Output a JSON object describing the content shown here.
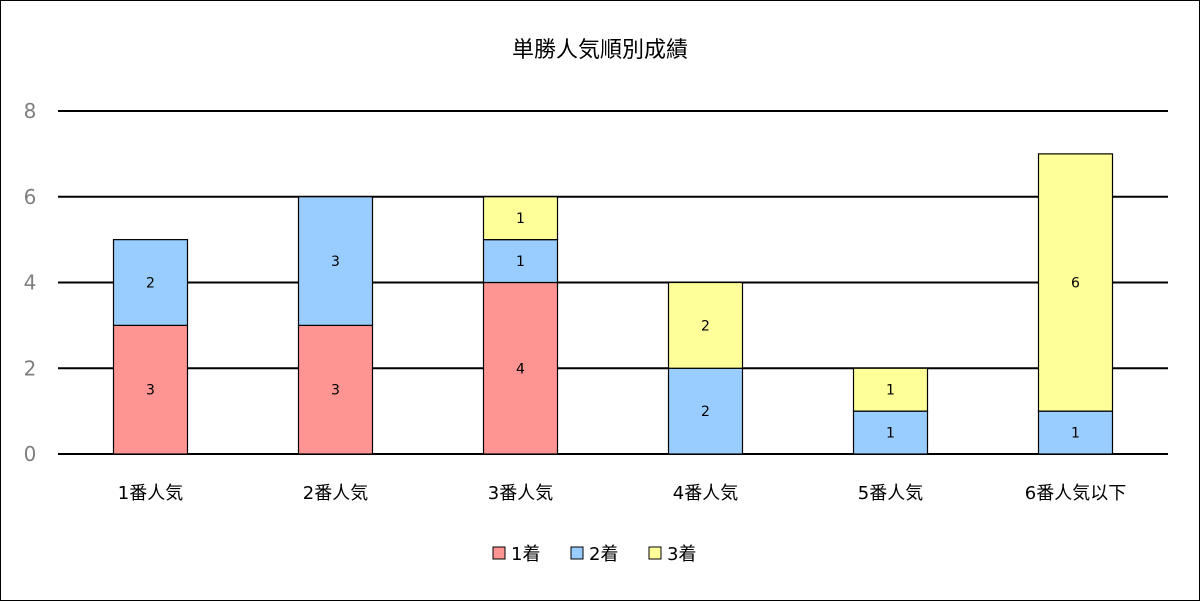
{
  "chart_data": {
    "type": "bar",
    "stacked": true,
    "title": "単勝人気順別成績",
    "categories": [
      "1番人気",
      "2番人気",
      "3番人気",
      "4番人気",
      "5番人気",
      "6番人気以下"
    ],
    "series": [
      {
        "name": "1着",
        "color": "#ff9592",
        "values": [
          3,
          3,
          4,
          0,
          0,
          0
        ]
      },
      {
        "name": "2着",
        "color": "#99ccff",
        "values": [
          2,
          3,
          1,
          2,
          1,
          1
        ]
      },
      {
        "name": "3着",
        "color": "#ffff99",
        "values": [
          0,
          0,
          1,
          2,
          1,
          6
        ]
      }
    ],
    "ylim": [
      0,
      8
    ],
    "yticks": [
      0,
      2,
      4,
      6,
      8
    ],
    "grid": true,
    "legend": "bottom"
  }
}
